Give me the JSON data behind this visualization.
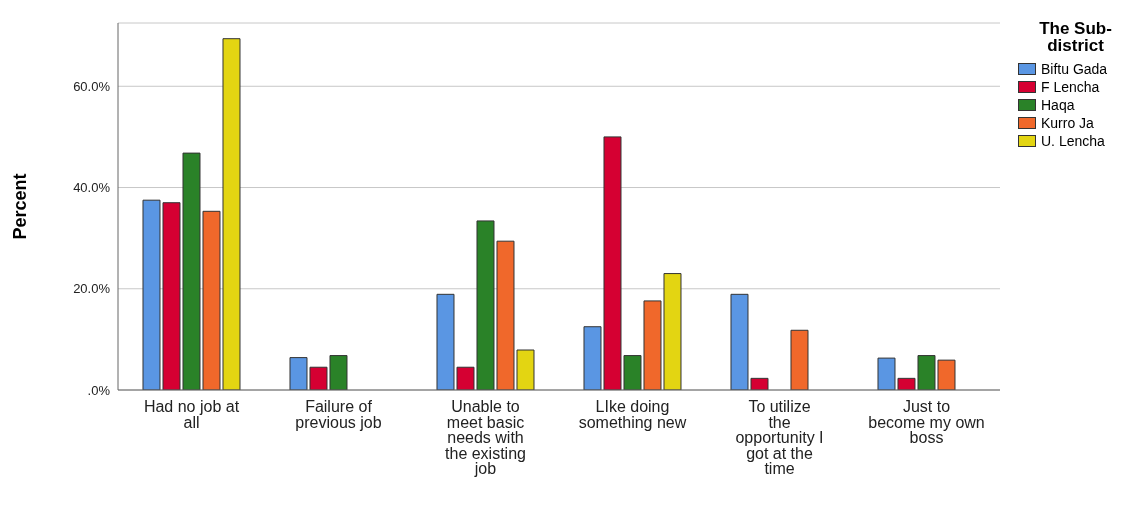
{
  "chart_data": {
    "type": "bar",
    "ylabel": "Percent",
    "legend_title": "The Sub-district",
    "legend": "top right",
    "grid": "y",
    "categories": [
      "Had no job at all",
      "Failure of previous job",
      "Unable to meet basic needs with the existing job",
      "LIke doing something new",
      "To utilize the opportunity I got at the time",
      "Just to become my own boss"
    ],
    "series": [
      {
        "name": "Biftu Gada",
        "color": "#5a96e3",
        "values": [
          37.5,
          6.4,
          18.9,
          12.5,
          18.9,
          6.3
        ]
      },
      {
        "name": "F Lencha",
        "color": "#d50032",
        "values": [
          37.0,
          4.5,
          4.5,
          50.0,
          2.3,
          2.3
        ]
      },
      {
        "name": "Haqa",
        "color": "#2a8228",
        "values": [
          46.8,
          6.8,
          33.4,
          6.8,
          0,
          6.8
        ]
      },
      {
        "name": "Kurro Ja",
        "color": "#f0682b",
        "values": [
          35.3,
          0,
          29.4,
          17.6,
          11.8,
          5.9
        ]
      },
      {
        "name": "U. Lencha",
        "color": "#e3d512",
        "values": [
          69.4,
          0,
          7.9,
          23.0,
          0,
          0
        ]
      }
    ],
    "ylim": [
      0,
      72.5
    ],
    "yticks": [
      {
        "value": 0,
        "label": ".0%"
      },
      {
        "value": 20,
        "label": "20.0%"
      },
      {
        "value": 40,
        "label": "40.0%"
      },
      {
        "value": 60,
        "label": "60.0%"
      }
    ]
  }
}
